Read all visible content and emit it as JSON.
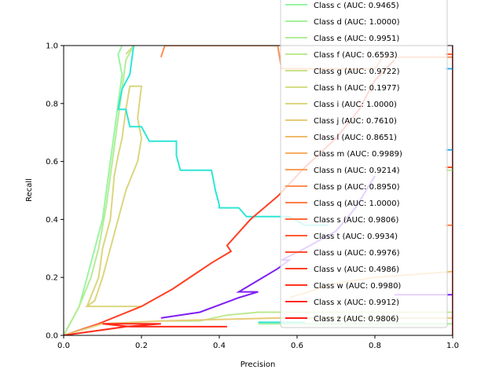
{
  "chart_data": {
    "type": "line",
    "xlabel": "Precision",
    "ylabel": "Recall",
    "xlim": [
      0,
      1
    ],
    "ylim": [
      0,
      1
    ],
    "xticks": [
      "0.0",
      "0.2",
      "0.4",
      "0.6",
      "0.8",
      "1.0"
    ],
    "yticks": [
      "0.0",
      "0.2",
      "0.4",
      "0.6",
      "0.8",
      "1.0"
    ],
    "grid": false,
    "legend_position": "top-right",
    "legend": [
      {
        "label": "Class c (AUC: 0.9465)",
        "color": "#9af5a3"
      },
      {
        "label": "Class d (AUC: 1.0000)",
        "color": "#a3f29b"
      },
      {
        "label": "Class e (AUC: 0.9951)",
        "color": "#afee96"
      },
      {
        "label": "Class f (AUC: 0.6593)",
        "color": "#bde98f"
      },
      {
        "label": "Class g (AUC: 0.9722)",
        "color": "#c9e38a"
      },
      {
        "label": "Class h (AUC: 0.1977)",
        "color": "#d3dd84"
      },
      {
        "label": "Class i (AUC: 1.0000)",
        "color": "#dbd67f"
      },
      {
        "label": "Class j (AUC: 0.7610)",
        "color": "#e6cc78"
      },
      {
        "label": "Class l (AUC: 0.8651)",
        "color": "#f0bb6c"
      },
      {
        "label": "Class m (AUC: 0.9989)",
        "color": "#f6ad63"
      },
      {
        "label": "Class n (AUC: 0.9214)",
        "color": "#fb9e59"
      },
      {
        "label": "Class p (AUC: 0.8950)",
        "color": "#ff8e50"
      },
      {
        "label": "Class q (AUC: 1.0000)",
        "color": "#ff7f47"
      },
      {
        "label": "Class s (AUC: 0.9806)",
        "color": "#ff6a3b"
      },
      {
        "label": "Class t (AUC: 0.9934)",
        "color": "#ff5b33"
      },
      {
        "label": "Class u (AUC: 0.9976)",
        "color": "#ff4e2b"
      },
      {
        "label": "Class v (AUC: 0.4986)",
        "color": "#ff4024"
      },
      {
        "label": "Class w (AUC: 0.9980)",
        "color": "#ff3420"
      },
      {
        "label": "Class x (AUC: 0.9912)",
        "color": "#ff2a1a"
      },
      {
        "label": "Class z (AUC: 0.9806)",
        "color": "#ff1e14"
      }
    ],
    "series": [
      {
        "color": "#9af5a3",
        "width": 2,
        "points": [
          [
            0,
            0
          ],
          [
            0.02,
            0.05
          ],
          [
            0.04,
            0.1
          ],
          [
            0.06,
            0.2
          ],
          [
            0.07,
            0.25
          ],
          [
            0.08,
            0.3
          ],
          [
            0.09,
            0.35
          ],
          [
            0.1,
            0.4
          ],
          [
            0.11,
            0.5
          ],
          [
            0.12,
            0.6
          ],
          [
            0.13,
            0.7
          ],
          [
            0.14,
            0.8
          ],
          [
            0.15,
            0.9
          ],
          [
            0.14,
            0.97
          ],
          [
            0.15,
            1.0
          ]
        ]
      },
      {
        "color": "#b6ec94",
        "width": 2,
        "points": [
          [
            0,
            0
          ],
          [
            0.04,
            0.1
          ],
          [
            0.07,
            0.2
          ],
          [
            0.09,
            0.3
          ],
          [
            0.11,
            0.45
          ],
          [
            0.12,
            0.55
          ],
          [
            0.13,
            0.65
          ],
          [
            0.14,
            0.75
          ],
          [
            0.15,
            0.85
          ],
          [
            0.16,
            0.95
          ],
          [
            0.18,
            1.0
          ]
        ]
      },
      {
        "color": "#d3dd84",
        "width": 2,
        "points": [
          [
            0.16,
            0.97
          ],
          [
            0.18,
            1.0
          ]
        ]
      },
      {
        "color": "#dbd67f",
        "width": 2,
        "points": [
          [
            0.06,
            0.1
          ],
          [
            0.09,
            0.2
          ],
          [
            0.1,
            0.3
          ],
          [
            0.12,
            0.4
          ],
          [
            0.13,
            0.55
          ],
          [
            0.14,
            0.62
          ],
          [
            0.15,
            0.68
          ],
          [
            0.16,
            0.78
          ],
          [
            0.17,
            0.86
          ],
          [
            0.2,
            0.86
          ],
          [
            0.19,
            0.75
          ],
          [
            0.2,
            0.68
          ],
          [
            0.19,
            0.6
          ],
          [
            0.16,
            0.5
          ],
          [
            0.14,
            0.4
          ],
          [
            0.12,
            0.3
          ],
          [
            0.1,
            0.2
          ],
          [
            0.08,
            0.12
          ],
          [
            0.06,
            0.1
          ],
          [
            0.2,
            0.1
          ]
        ]
      },
      {
        "color": "#2ee6d6",
        "width": 2,
        "points": [
          [
            0.18,
            1.0
          ],
          [
            0.17,
            0.9
          ],
          [
            0.15,
            0.85
          ],
          [
            0.14,
            0.78
          ],
          [
            0.16,
            0.78
          ],
          [
            0.17,
            0.72
          ],
          [
            0.2,
            0.72
          ],
          [
            0.22,
            0.67
          ],
          [
            0.29,
            0.67
          ],
          [
            0.29,
            0.62
          ],
          [
            0.3,
            0.57
          ],
          [
            0.38,
            0.57
          ],
          [
            0.39,
            0.5
          ],
          [
            0.4,
            0.45
          ],
          [
            0.4,
            0.44
          ],
          [
            0.45,
            0.44
          ],
          [
            0.47,
            0.41
          ],
          [
            0.58,
            0.41
          ],
          [
            0.62,
            0.38
          ],
          [
            0.68,
            0.38
          ]
        ]
      },
      {
        "color": "#ff8e50",
        "width": 2,
        "points": [
          [
            0.25,
            0.96
          ],
          [
            0.26,
            1.0
          ],
          [
            0.55,
            1.0
          ],
          [
            0.56,
            0.92
          ],
          [
            0.8,
            0.92
          ],
          [
            0.82,
            0.96
          ],
          [
            1.0,
            0.96
          ]
        ]
      },
      {
        "color": "#ff4024",
        "width": 2,
        "points": [
          [
            0.0,
            0.0
          ],
          [
            0.09,
            0.04
          ],
          [
            0.2,
            0.1
          ],
          [
            0.28,
            0.16
          ],
          [
            0.38,
            0.25
          ],
          [
            0.43,
            0.29
          ],
          [
            0.42,
            0.31
          ],
          [
            0.48,
            0.4
          ],
          [
            0.55,
            0.48
          ],
          [
            0.62,
            0.58
          ],
          [
            0.7,
            0.68
          ],
          [
            0.76,
            0.78
          ],
          [
            0.8,
            0.88
          ],
          [
            0.85,
            0.95
          ]
        ]
      },
      {
        "color": "#7f1ef2",
        "width": 2,
        "points": [
          [
            0.25,
            0.06
          ],
          [
            0.35,
            0.08
          ],
          [
            0.45,
            0.13
          ],
          [
            0.5,
            0.15
          ],
          [
            0.48,
            0.15
          ],
          [
            0.45,
            0.15
          ],
          [
            0.5,
            0.19
          ],
          [
            0.55,
            0.23
          ],
          [
            0.58,
            0.26
          ],
          [
            0.56,
            0.26
          ],
          [
            0.62,
            0.3
          ],
          [
            0.7,
            0.36
          ],
          [
            0.75,
            0.44
          ],
          [
            0.8,
            0.55
          ]
        ]
      },
      {
        "color": "#bde98f",
        "width": 2,
        "points": [
          [
            0.24,
            0.05
          ],
          [
            0.35,
            0.05
          ],
          [
            0.42,
            0.07
          ],
          [
            0.5,
            0.08
          ],
          [
            0.62,
            0.08
          ],
          [
            0.75,
            0.08
          ],
          [
            0.85,
            0.08
          ],
          [
            1.0,
            0.08
          ]
        ]
      },
      {
        "color": "#e6cc78",
        "width": 2,
        "points": [
          [
            0.0,
            0.0
          ],
          [
            0.1,
            0.04
          ],
          [
            0.25,
            0.05
          ],
          [
            0.55,
            0.06
          ],
          [
            0.8,
            0.06
          ],
          [
            1.0,
            0.06
          ]
        ]
      },
      {
        "color": "#ff2a1a",
        "width": 2,
        "points": [
          [
            0.0,
            0.0
          ],
          [
            0.16,
            0.03
          ],
          [
            0.25,
            0.04
          ],
          [
            0.1,
            0.04
          ],
          [
            0.17,
            0.03
          ],
          [
            0.42,
            0.03
          ]
        ]
      },
      {
        "color": "#a6f19c",
        "width": 2,
        "points": [
          [
            0.5,
            0.04
          ],
          [
            0.75,
            0.04
          ],
          [
            1.0,
            0.04
          ]
        ]
      },
      {
        "color": "#2ee6d6",
        "width": 2,
        "points": [
          [
            0.5,
            0.045
          ],
          [
            0.62,
            0.045
          ]
        ]
      },
      {
        "color": "#f0bb6c",
        "width": 2,
        "points": [
          [
            0.58,
            0.13
          ],
          [
            0.7,
            0.18
          ],
          [
            0.8,
            0.2
          ],
          [
            1.0,
            0.22
          ]
        ]
      },
      {
        "color": "#7f1ef2",
        "width": 2,
        "points": [
          [
            0.85,
            0.14
          ],
          [
            1.0,
            0.14
          ]
        ]
      },
      {
        "color": "#ff1e14",
        "width": 2,
        "points": [
          [
            1.0,
            0.0
          ],
          [
            1.0,
            1.0
          ]
        ]
      },
      {
        "color": "#ff5b33",
        "width": 2,
        "points": [
          [
            0.98,
            0.97
          ],
          [
            1.0,
            0.97
          ]
        ]
      },
      {
        "color": "#ff4e2b",
        "width": 2,
        "points": [
          [
            0.98,
            0.58
          ],
          [
            1.0,
            0.58
          ]
        ]
      },
      {
        "color": "#33aaf0",
        "width": 2,
        "points": [
          [
            0.98,
            0.64
          ],
          [
            1.0,
            0.64
          ]
        ]
      },
      {
        "color": "#33aaf0",
        "width": 2,
        "points": [
          [
            0.98,
            0.92
          ],
          [
            1.0,
            0.92
          ]
        ]
      },
      {
        "color": "#ff7f47",
        "width": 2,
        "points": [
          [
            0.98,
            0.38
          ],
          [
            1.0,
            0.38
          ]
        ]
      },
      {
        "color": "#bde98f",
        "width": 2,
        "points": [
          [
            0.98,
            0.57
          ],
          [
            1.0,
            0.57
          ]
        ]
      }
    ]
  }
}
